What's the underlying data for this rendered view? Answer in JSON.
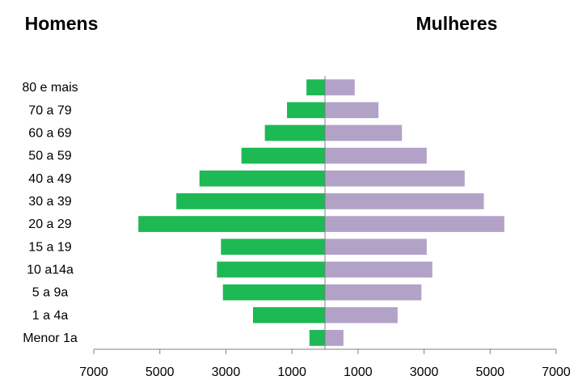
{
  "chart_data": {
    "type": "bar",
    "orientation": "horizontal",
    "subtype": "population-pyramid",
    "left_title": "Homens",
    "right_title": "Mulheres",
    "categories": [
      "80 e mais",
      "70 a 79",
      "60 a 69",
      "50 a 59",
      "40 a 49",
      "30 a 39",
      "20 a 29",
      "15 a 19",
      "10 a14a",
      "5 a 9a",
      "1 a 4a",
      "Menor 1a"
    ],
    "series": [
      {
        "name": "Homens",
        "side": "left",
        "color": "#1db954",
        "values": [
          560,
          1150,
          1820,
          2530,
          3800,
          4500,
          5650,
          3150,
          3270,
          3090,
          2180,
          470
        ]
      },
      {
        "name": "Mulheres",
        "side": "right",
        "color": "#b3a2c8",
        "values": [
          900,
          1620,
          2330,
          3080,
          4230,
          4810,
          5430,
          3080,
          3250,
          2920,
          2200,
          560
        ]
      }
    ],
    "xlim": [
      -7000,
      7000
    ],
    "xticks": [
      -7000,
      -5000,
      -3000,
      -1000,
      1000,
      3000,
      5000,
      7000
    ],
    "tick_labels": [
      "7000",
      "5000",
      "3000",
      "1000",
      "1000",
      "3000",
      "5000",
      "7000"
    ],
    "grid": false,
    "legend": "none"
  }
}
